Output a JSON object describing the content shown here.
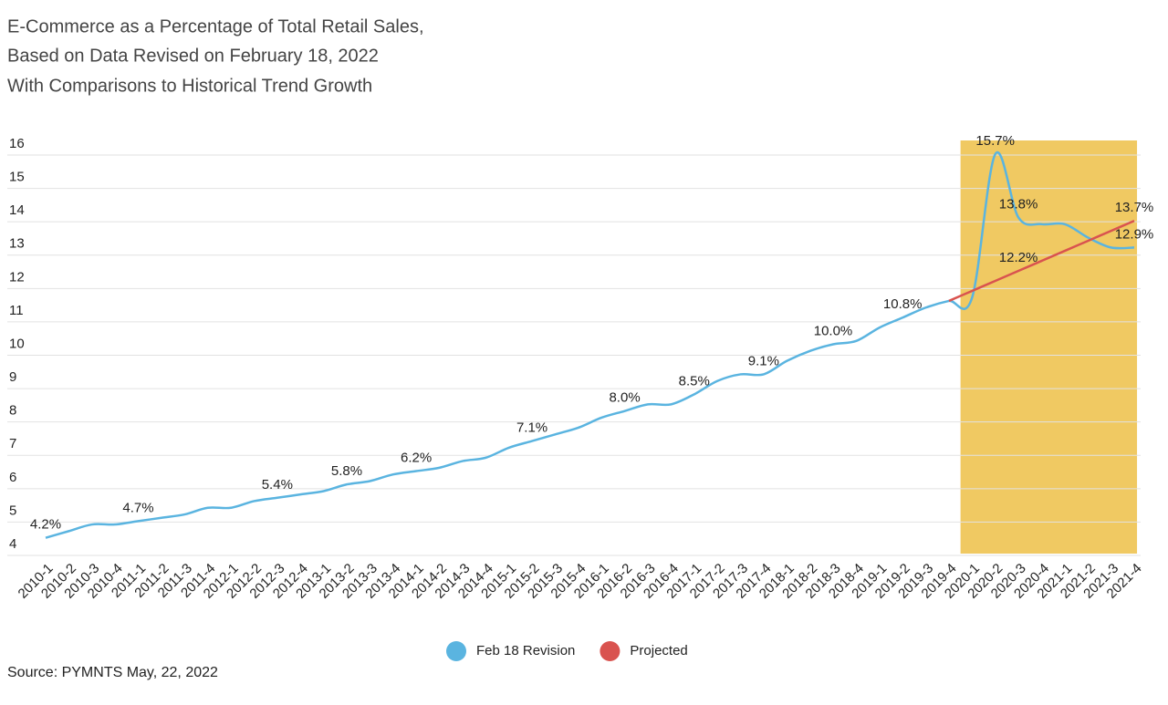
{
  "chart_data": {
    "type": "line",
    "title": [
      "E-Commerce as a Percentage of Total Retail Sales,",
      "Based on Data Revised on February 18, 2022",
      "With Comparisons to Historical Trend Growth"
    ],
    "source": "Source: PYMNTS May, 22, 2022",
    "categories": [
      "2010-1",
      "2010-2",
      "2010-3",
      "2010-4",
      "2011-1",
      "2011-2",
      "2011-3",
      "2011-4",
      "2012-1",
      "2012-2",
      "2012-3",
      "2012-4",
      "2013-1",
      "2013-2",
      "2013-3",
      "2013-4",
      "2014-1",
      "2014-2",
      "2014-3",
      "2014-4",
      "2015-1",
      "2015-2",
      "2015-3",
      "2015-4",
      "2016-1",
      "2016-2",
      "2016-3",
      "2016-4",
      "2017-1",
      "2017-2",
      "2017-3",
      "2017-4",
      "2018-1",
      "2018-2",
      "2018-3",
      "2018-4",
      "2019-1",
      "2019-2",
      "2019-3",
      "2019-4",
      "2020-1",
      "2020-2",
      "2020-3",
      "2020-4",
      "2021-1",
      "2021-2",
      "2021-3",
      "2021-4"
    ],
    "highlight": [
      "2020-1",
      "2021-4"
    ],
    "highlight_color": "#f0c962",
    "series": [
      {
        "name": "Feb 18 Revision",
        "color": "#5ab4e0",
        "values": [
          4.2,
          4.4,
          4.6,
          4.6,
          4.7,
          4.8,
          4.9,
          5.1,
          5.1,
          5.3,
          5.4,
          5.5,
          5.6,
          5.8,
          5.9,
          6.1,
          6.2,
          6.3,
          6.5,
          6.6,
          6.9,
          7.1,
          7.3,
          7.5,
          7.8,
          8.0,
          8.2,
          8.2,
          8.5,
          8.9,
          9.1,
          9.1,
          9.5,
          9.8,
          10.0,
          10.1,
          10.5,
          10.8,
          11.1,
          11.3,
          11.4,
          15.7,
          13.8,
          13.6,
          13.6,
          13.2,
          12.9,
          12.9
        ],
        "value_labels": [
          "4.2%",
          null,
          null,
          null,
          "4.7%",
          null,
          null,
          null,
          null,
          null,
          "5.4%",
          null,
          null,
          "5.8%",
          null,
          null,
          "6.2%",
          null,
          null,
          null,
          null,
          "7.1%",
          null,
          null,
          null,
          "8.0%",
          null,
          null,
          "8.5%",
          null,
          null,
          "9.1%",
          null,
          null,
          "10.0%",
          null,
          null,
          "10.8%",
          null,
          null,
          null,
          "15.7%",
          "13.8%",
          null,
          null,
          null,
          null,
          "12.9%"
        ]
      },
      {
        "name": "Projected",
        "color": "#d9534f",
        "values": [
          null,
          null,
          null,
          null,
          null,
          null,
          null,
          null,
          null,
          null,
          null,
          null,
          null,
          null,
          null,
          null,
          null,
          null,
          null,
          null,
          null,
          null,
          null,
          null,
          null,
          null,
          null,
          null,
          null,
          null,
          null,
          null,
          null,
          null,
          null,
          null,
          null,
          null,
          null,
          11.3,
          11.6,
          11.9,
          12.2,
          12.5,
          12.8,
          13.1,
          13.4,
          13.7
        ],
        "value_labels": [
          null,
          null,
          null,
          null,
          null,
          null,
          null,
          null,
          null,
          null,
          null,
          null,
          null,
          null,
          null,
          null,
          null,
          null,
          null,
          null,
          null,
          null,
          null,
          null,
          null,
          null,
          null,
          null,
          null,
          null,
          null,
          null,
          null,
          null,
          null,
          null,
          null,
          null,
          null,
          null,
          null,
          null,
          "12.2%",
          null,
          null,
          null,
          null,
          "13.7%"
        ]
      }
    ],
    "ylim": [
      4,
      16
    ],
    "yticks": [
      4,
      5,
      6,
      7,
      8,
      9,
      10,
      11,
      12,
      13,
      14,
      15,
      16
    ],
    "grid": true,
    "legend": "bottom"
  }
}
